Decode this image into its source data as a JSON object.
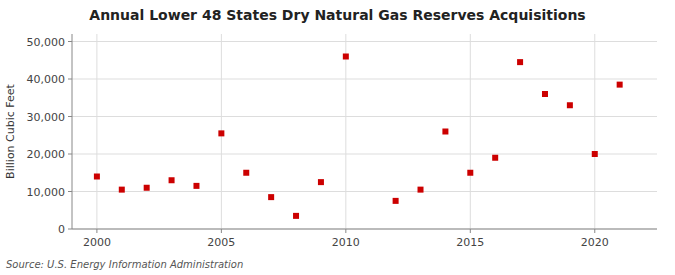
{
  "chart_data": {
    "type": "scatter",
    "title": "Annual Lower 48 States Dry Natural Gas Reserves Acquisitions",
    "ylabel": "Billion Cubic Feet",
    "source": "Source: U.S. Energy Information Administration",
    "x": [
      2000,
      2001,
      2002,
      2003,
      2004,
      2005,
      2006,
      2007,
      2008,
      2009,
      2010,
      2012,
      2013,
      2014,
      2015,
      2016,
      2017,
      2018,
      2019,
      2020,
      2021
    ],
    "values": [
      14000,
      10500,
      11000,
      13000,
      11500,
      25500,
      15000,
      8500,
      3500,
      12500,
      46000,
      7500,
      10500,
      26000,
      15000,
      19000,
      44500,
      36000,
      33000,
      20000,
      38500
    ],
    "color": "#cc0000",
    "marker": "square",
    "xlim": [
      1999,
      2022.5
    ],
    "ylim": [
      0,
      52000
    ],
    "xticks": [
      2000,
      2005,
      2010,
      2015,
      2020
    ],
    "yticks": [
      0,
      {
        "value": 10000,
        "label": "10,000"
      },
      {
        "value": 20000,
        "label": "20,000"
      },
      {
        "value": 30000,
        "label": "30,000"
      },
      {
        "value": 40000,
        "label": "40,000"
      },
      {
        "value": 50000,
        "label": "50,000"
      }
    ],
    "grid": true
  }
}
